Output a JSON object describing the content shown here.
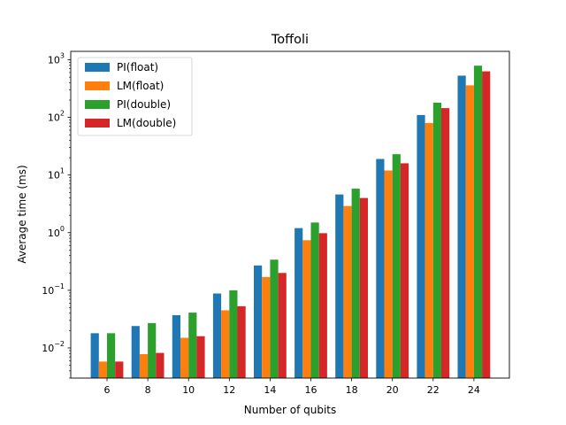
{
  "chart_data": {
    "type": "bar",
    "title": "Toffoli",
    "xlabel": "Number of qubits",
    "ylabel": "Average time (ms)",
    "y_scale": "log",
    "ylim": [
      0.003,
      1400
    ],
    "y_tick_labels": [
      {
        "value": 0.01,
        "base": "10",
        "exp": "−2"
      },
      {
        "value": 0.1,
        "base": "10",
        "exp": "−1"
      },
      {
        "value": 1,
        "base": "10",
        "exp": "0"
      },
      {
        "value": 10,
        "base": "10",
        "exp": "1"
      },
      {
        "value": 100,
        "base": "10",
        "exp": "2"
      },
      {
        "value": 1000,
        "base": "10",
        "exp": "3"
      }
    ],
    "categories": [
      "6",
      "8",
      "10",
      "12",
      "14",
      "16",
      "18",
      "20",
      "22",
      "24"
    ],
    "legend_position": "top-left",
    "grid": false,
    "series": [
      {
        "name": "PI(float)",
        "color": "#1f77b4",
        "values": [
          0.018,
          0.024,
          0.037,
          0.088,
          0.27,
          1.2,
          4.6,
          19,
          110,
          530
        ]
      },
      {
        "name": "LM(float)",
        "color": "#ff7f0e",
        "values": [
          0.0058,
          0.0078,
          0.015,
          0.045,
          0.17,
          0.74,
          2.9,
          12,
          80,
          360
        ]
      },
      {
        "name": "PI(double)",
        "color": "#2ca02c",
        "values": [
          0.018,
          0.027,
          0.041,
          0.1,
          0.34,
          1.5,
          5.8,
          23,
          180,
          790
        ]
      },
      {
        "name": "LM(double)",
        "color": "#d62728",
        "values": [
          0.0058,
          0.0082,
          0.016,
          0.053,
          0.2,
          0.98,
          4.0,
          16,
          145,
          630
        ]
      }
    ]
  }
}
